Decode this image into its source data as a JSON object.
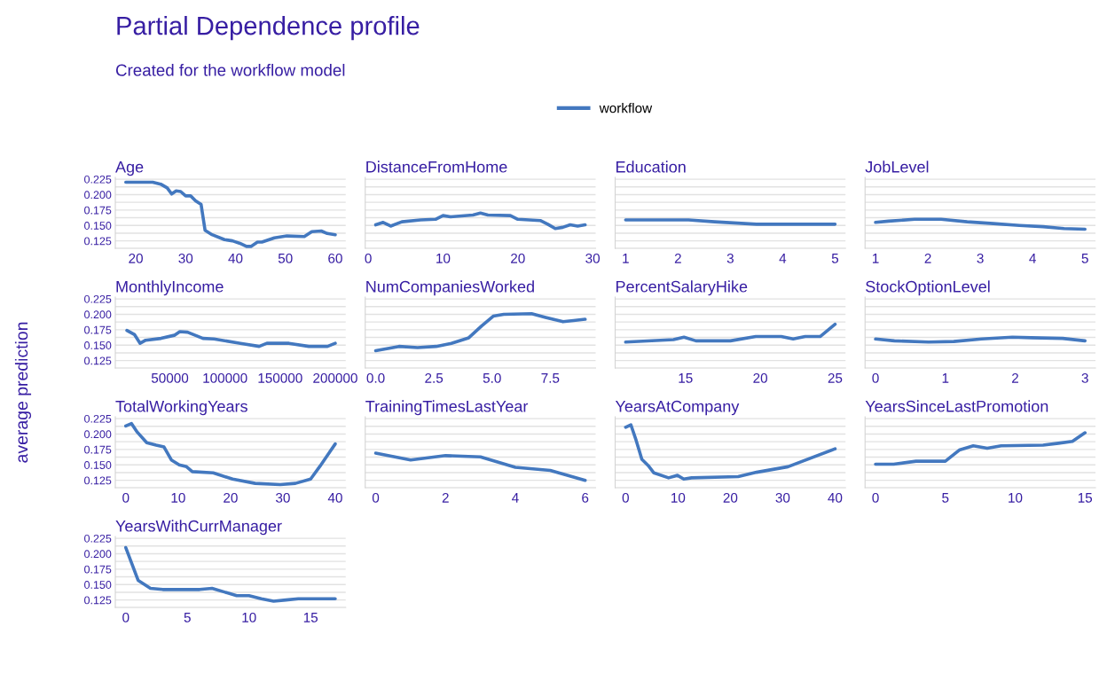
{
  "chart_data": [
    {
      "type": "other",
      "title": "Partial Dependence profile",
      "subtitle": "Created for the workflow model",
      "ylabel": "average prediction"
    },
    {
      "type": "line",
      "title": "Age",
      "legend": "top",
      "x": [
        18,
        23.4,
        25,
        26.3,
        27.2,
        28.1,
        29,
        30,
        31,
        32,
        33.1,
        33.9,
        35.3,
        37.8,
        39.4,
        40.9,
        42.2,
        43.1,
        44.4,
        45.3,
        47.8,
        50.3,
        53.8,
        55.3,
        57.2,
        58.4,
        60
      ],
      "series": [
        {
          "name": "workflow",
          "color": "#4378bf",
          "values": [
            0.22,
            0.22,
            0.217,
            0.211,
            0.201,
            0.206,
            0.205,
            0.198,
            0.198,
            0.19,
            0.184,
            0.142,
            0.135,
            0.127,
            0.125,
            0.121,
            0.116,
            0.116,
            0.123,
            0.123,
            0.13,
            0.133,
            0.132,
            0.14,
            0.141,
            0.137,
            0.135
          ]
        }
      ],
      "xlim": [
        15.9,
        62.1
      ],
      "xticks": [
        20,
        30,
        40,
        50,
        60
      ],
      "ylim": [
        0.113,
        0.228
      ],
      "yticks": [
        0.125,
        {
          "value": 0.1375,
          "label": null
        },
        {
          "value": 0.15,
          "label": "0.150"
        },
        {
          "value": 0.1625,
          "label": null
        },
        0.175,
        {
          "value": 0.1875,
          "label": null
        },
        {
          "value": 0.2,
          "label": "0.200"
        },
        {
          "value": 0.2125,
          "label": null
        },
        0.225
      ],
      "grid": "y"
    },
    {
      "type": "line",
      "title": "DistanceFromHome",
      "x": [
        1,
        2,
        3,
        4.5,
        7,
        9,
        10,
        11,
        14,
        15,
        16,
        19,
        20,
        23,
        24,
        25,
        26,
        27,
        28,
        29
      ],
      "series": [
        {
          "name": "workflow",
          "color": "#4378bf",
          "values": [
            0.151,
            0.155,
            0.149,
            0.156,
            0.159,
            0.16,
            0.166,
            0.164,
            0.167,
            0.17,
            0.167,
            0.166,
            0.16,
            0.158,
            0.152,
            0.145,
            0.147,
            0.151,
            0.149,
            0.151
          ]
        }
      ],
      "xlim": [
        -0.4,
        30.4
      ],
      "xticks": [
        0,
        10,
        20,
        30
      ],
      "ylim": [
        0.113,
        0.228
      ],
      "yticks": [
        0.125,
        {
          "value": 0.1375,
          "label": null
        },
        {
          "value": 0.15,
          "label": "0.150"
        },
        {
          "value": 0.1625,
          "label": null
        },
        0.175,
        {
          "value": 0.1875,
          "label": null
        },
        {
          "value": 0.2,
          "label": "0.200"
        },
        {
          "value": 0.2125,
          "label": null
        },
        0.225
      ],
      "grid": "y",
      "tick_labels": "x"
    },
    {
      "type": "line",
      "title": "Education",
      "x": [
        1,
        2.2,
        2.7,
        3.5,
        5
      ],
      "series": [
        {
          "name": "workflow",
          "color": "#4378bf",
          "values": [
            0.159,
            0.159,
            0.156,
            0.152,
            0.152
          ]
        }
      ],
      "xlim": [
        0.8,
        5.2
      ],
      "xticks": [
        1,
        2,
        3,
        4,
        5
      ],
      "ylim": [
        0.113,
        0.228
      ],
      "yticks": [
        0.125,
        {
          "value": 0.1375,
          "label": null
        },
        {
          "value": 0.15,
          "label": "0.150"
        },
        {
          "value": 0.1625,
          "label": null
        },
        0.175,
        {
          "value": 0.1875,
          "label": null
        },
        {
          "value": 0.2,
          "label": "0.200"
        },
        {
          "value": 0.2125,
          "label": null
        },
        0.225
      ],
      "grid": "y",
      "tick_labels": "x"
    },
    {
      "type": "line",
      "title": "JobLevel",
      "x": [
        1,
        1.25,
        1.75,
        2.25,
        2.75,
        3.25,
        3.75,
        4.2,
        4.6,
        5
      ],
      "series": [
        {
          "name": "workflow",
          "color": "#4378bf",
          "values": [
            0.155,
            0.157,
            0.16,
            0.16,
            0.156,
            0.153,
            0.15,
            0.148,
            0.145,
            0.144
          ]
        }
      ],
      "xlim": [
        0.8,
        5.2
      ],
      "xticks": [
        1,
        2,
        3,
        4,
        5
      ],
      "ylim": [
        0.113,
        0.228
      ],
      "yticks": [
        0.125,
        {
          "value": 0.1375,
          "label": null
        },
        {
          "value": 0.15,
          "label": "0.150"
        },
        {
          "value": 0.1625,
          "label": null
        },
        0.175,
        {
          "value": 0.1875,
          "label": null
        },
        {
          "value": 0.2,
          "label": "0.200"
        },
        {
          "value": 0.2125,
          "label": null
        },
        0.225
      ],
      "grid": "y",
      "tick_labels": "x"
    },
    {
      "type": "line",
      "title": "MonthlyIncome",
      "x": [
        11000,
        18000,
        23000,
        28000,
        42000,
        54000,
        59000,
        66000,
        80000,
        90000,
        114000,
        131000,
        138000,
        158000,
        176000,
        193000,
        200000
      ],
      "series": [
        {
          "name": "workflow",
          "color": "#4378bf",
          "values": [
            0.174,
            0.167,
            0.153,
            0.158,
            0.161,
            0.166,
            0.172,
            0.171,
            0.161,
            0.16,
            0.153,
            0.148,
            0.153,
            0.153,
            0.148,
            0.148,
            0.153
          ]
        }
      ],
      "xlim": [
        500,
        209500
      ],
      "xticks": [
        50000,
        100000,
        150000,
        200000
      ],
      "ylim": [
        0.113,
        0.228
      ],
      "yticks": [
        0.125,
        {
          "value": 0.1375,
          "label": null
        },
        {
          "value": 0.15,
          "label": "0.150"
        },
        {
          "value": 0.1625,
          "label": null
        },
        0.175,
        {
          "value": 0.1875,
          "label": null
        },
        {
          "value": 0.2,
          "label": "0.200"
        },
        {
          "value": 0.2125,
          "label": null
        },
        0.225
      ],
      "grid": "y"
    },
    {
      "type": "line",
      "title": "NumCompaniesWorked",
      "x": [
        0,
        1,
        1.8,
        2.6,
        3.25,
        4,
        4.55,
        5.05,
        5.5,
        6.7,
        7.3,
        8.05,
        8.5,
        9
      ],
      "series": [
        {
          "name": "workflow",
          "color": "#4378bf",
          "values": [
            0.141,
            0.148,
            0.146,
            0.148,
            0.153,
            0.162,
            0.181,
            0.197,
            0.2,
            0.201,
            0.195,
            0.188,
            0.19,
            0.192
          ]
        }
      ],
      "xlim": [
        -0.45,
        9.45
      ],
      "xticks": [
        {
          "value": 0,
          "label": "0.0"
        },
        2.5,
        {
          "value": 5,
          "label": "5.0"
        },
        7.5
      ],
      "ylim": [
        0.113,
        0.228
      ],
      "yticks": [
        0.125,
        {
          "value": 0.1375,
          "label": null
        },
        {
          "value": 0.15,
          "label": "0.150"
        },
        {
          "value": 0.1625,
          "label": null
        },
        0.175,
        {
          "value": 0.1875,
          "label": null
        },
        {
          "value": 0.2,
          "label": "0.200"
        },
        {
          "value": 0.2125,
          "label": null
        },
        0.225
      ],
      "grid": "y",
      "tick_labels": "x"
    },
    {
      "type": "line",
      "title": "PercentSalaryHike",
      "x": [
        11,
        14.2,
        14.9,
        15.7,
        18,
        19.7,
        21.4,
        22.2,
        23,
        24,
        25
      ],
      "series": [
        {
          "name": "workflow",
          "color": "#4378bf",
          "values": [
            0.155,
            0.159,
            0.163,
            0.157,
            0.157,
            0.164,
            0.164,
            0.16,
            0.164,
            0.164,
            0.184
          ]
        }
      ],
      "xlim": [
        10.3,
        25.7
      ],
      "xticks": [
        15,
        20,
        25
      ],
      "ylim": [
        0.113,
        0.228
      ],
      "yticks": [
        0.125,
        {
          "value": 0.1375,
          "label": null
        },
        {
          "value": 0.15,
          "label": "0.150"
        },
        {
          "value": 0.1625,
          "label": null
        },
        0.175,
        {
          "value": 0.1875,
          "label": null
        },
        {
          "value": 0.2,
          "label": "0.200"
        },
        {
          "value": 0.2125,
          "label": null
        },
        0.225
      ],
      "grid": "y",
      "tick_labels": "x"
    },
    {
      "type": "line",
      "title": "StockOptionLevel",
      "x": [
        0,
        0.27,
        0.76,
        1.12,
        1.52,
        1.96,
        2.23,
        2.68,
        3
      ],
      "series": [
        {
          "name": "workflow",
          "color": "#4378bf",
          "values": [
            0.16,
            0.157,
            0.155,
            0.156,
            0.16,
            0.163,
            0.162,
            0.161,
            0.157
          ]
        }
      ],
      "xlim": [
        -0.15,
        3.15
      ],
      "xticks": [
        0,
        1,
        2,
        3
      ],
      "ylim": [
        0.113,
        0.228
      ],
      "yticks": [
        0.125,
        {
          "value": 0.1375,
          "label": null
        },
        {
          "value": 0.15,
          "label": "0.150"
        },
        {
          "value": 0.1625,
          "label": null
        },
        0.175,
        {
          "value": 0.1875,
          "label": null
        },
        {
          "value": 0.2,
          "label": "0.200"
        },
        {
          "value": 0.2125,
          "label": null
        },
        0.225
      ],
      "grid": "y",
      "tick_labels": "x"
    },
    {
      "type": "line",
      "title": "TotalWorkingYears",
      "x": [
        0,
        1.1,
        2.2,
        4,
        5.8,
        7.3,
        8.7,
        10.2,
        11.6,
        12.7,
        16.7,
        20.4,
        24.7,
        29.5,
        32.4,
        35.3,
        37.1,
        40
      ],
      "series": [
        {
          "name": "workflow",
          "color": "#4378bf",
          "values": [
            0.213,
            0.217,
            0.203,
            0.186,
            0.182,
            0.179,
            0.158,
            0.15,
            0.147,
            0.139,
            0.137,
            0.127,
            0.12,
            0.118,
            0.12,
            0.127,
            0.148,
            0.184
          ]
        }
      ],
      "xlim": [
        -2,
        42
      ],
      "xticks": [
        0,
        10,
        20,
        30,
        40
      ],
      "ylim": [
        0.113,
        0.228
      ],
      "yticks": [
        0.125,
        {
          "value": 0.1375,
          "label": null
        },
        {
          "value": 0.15,
          "label": "0.150"
        },
        {
          "value": 0.1625,
          "label": null
        },
        0.175,
        {
          "value": 0.1875,
          "label": null
        },
        {
          "value": 0.2,
          "label": "0.200"
        },
        {
          "value": 0.2125,
          "label": null
        },
        0.225
      ],
      "grid": "y"
    },
    {
      "type": "line",
      "title": "TrainingTimesLastYear",
      "x": [
        0,
        1,
        2,
        3,
        4,
        5,
        6
      ],
      "series": [
        {
          "name": "workflow",
          "color": "#4378bf",
          "values": [
            0.169,
            0.158,
            0.165,
            0.163,
            0.146,
            0.141,
            0.125
          ]
        }
      ],
      "xlim": [
        -0.3,
        6.3
      ],
      "xticks": [
        0,
        2,
        4,
        6
      ],
      "ylim": [
        0.113,
        0.228
      ],
      "yticks": [
        0.125,
        {
          "value": 0.1375,
          "label": null
        },
        {
          "value": 0.15,
          "label": "0.150"
        },
        {
          "value": 0.1625,
          "label": null
        },
        0.175,
        {
          "value": 0.1875,
          "label": null
        },
        {
          "value": 0.2,
          "label": "0.200"
        },
        {
          "value": 0.2125,
          "label": null
        },
        0.225
      ],
      "grid": "y",
      "tick_labels": "x"
    },
    {
      "type": "line",
      "title": "YearsAtCompany",
      "x": [
        0,
        1,
        2,
        3.1,
        4.3,
        5.4,
        8.2,
        9.9,
        11.1,
        12.6,
        21.5,
        25,
        31,
        40
      ],
      "series": [
        {
          "name": "workflow",
          "color": "#4378bf",
          "values": [
            0.211,
            0.215,
            0.19,
            0.159,
            0.149,
            0.137,
            0.129,
            0.133,
            0.127,
            0.129,
            0.131,
            0.138,
            0.147,
            0.176
          ]
        }
      ],
      "xlim": [
        -2,
        42
      ],
      "xticks": [
        0,
        10,
        20,
        30,
        40
      ],
      "ylim": [
        0.113,
        0.228
      ],
      "yticks": [
        0.125,
        {
          "value": 0.1375,
          "label": null
        },
        {
          "value": 0.15,
          "label": "0.150"
        },
        {
          "value": 0.1625,
          "label": null
        },
        0.175,
        {
          "value": 0.1875,
          "label": null
        },
        {
          "value": 0.2,
          "label": "0.200"
        },
        {
          "value": 0.2125,
          "label": null
        },
        0.225
      ],
      "grid": "y",
      "tick_labels": "x"
    },
    {
      "type": "line",
      "title": "YearsSinceLastPromotion",
      "x": [
        0,
        1.3,
        2.9,
        5,
        6,
        7,
        8,
        9,
        12,
        13.1,
        14.1,
        15
      ],
      "series": [
        {
          "name": "workflow",
          "color": "#4378bf",
          "values": [
            0.151,
            0.151,
            0.156,
            0.156,
            0.174,
            0.181,
            0.177,
            0.181,
            0.182,
            0.185,
            0.188,
            0.202
          ]
        }
      ],
      "xlim": [
        -0.75,
        15.75
      ],
      "xticks": [
        0,
        5,
        10,
        15
      ],
      "ylim": [
        0.113,
        0.228
      ],
      "yticks": [
        0.125,
        {
          "value": 0.1375,
          "label": null
        },
        {
          "value": 0.15,
          "label": "0.150"
        },
        {
          "value": 0.1625,
          "label": null
        },
        0.175,
        {
          "value": 0.1875,
          "label": null
        },
        {
          "value": 0.2,
          "label": "0.200"
        },
        {
          "value": 0.2125,
          "label": null
        },
        0.225
      ],
      "grid": "y",
      "tick_labels": "x"
    },
    {
      "type": "line",
      "title": "YearsWithCurrManager",
      "x": [
        0,
        1,
        2,
        3,
        4,
        5,
        6,
        7,
        8,
        9,
        10,
        11,
        12,
        13,
        14,
        15,
        16,
        17
      ],
      "series": [
        {
          "name": "workflow",
          "color": "#4378bf",
          "values": [
            0.21,
            0.157,
            0.144,
            0.142,
            0.142,
            0.142,
            0.142,
            0.144,
            0.138,
            0.132,
            0.132,
            0.127,
            0.123,
            0.125,
            0.127,
            0.127,
            0.127,
            0.127
          ]
        }
      ],
      "xlim": [
        -0.85,
        17.85
      ],
      "xticks": [
        0,
        5,
        10,
        15
      ],
      "ylim": [
        0.113,
        0.228
      ],
      "yticks": [
        0.125,
        {
          "value": 0.1375,
          "label": null
        },
        {
          "value": 0.15,
          "label": "0.150"
        },
        {
          "value": 0.1625,
          "label": null
        },
        0.175,
        {
          "value": 0.1875,
          "label": null
        },
        {
          "value": 0.2,
          "label": "0.200"
        },
        {
          "value": 0.2125,
          "label": null
        },
        0.225
      ],
      "grid": "y"
    }
  ]
}
